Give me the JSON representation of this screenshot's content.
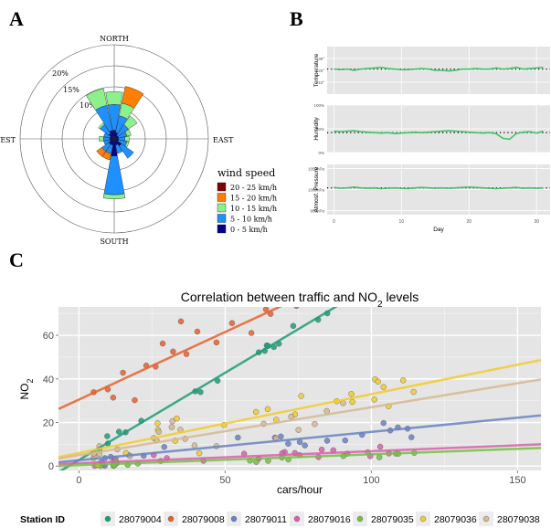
{
  "panels": {
    "a": "A",
    "b": "B",
    "c": "C"
  },
  "chart_data": [
    {
      "type": "wind-rose",
      "directions": [
        "NORTH",
        "EAST",
        "SOUTH",
        "WEST"
      ],
      "radial_ticks": [
        "10%",
        "15%",
        "20%"
      ],
      "legend_title": "wind speed",
      "speed_bins": [
        {
          "label": "20 - 25 km/h",
          "color": "#7f0000"
        },
        {
          "label": "15 - 20 km/h",
          "color": "#ff7f00"
        },
        {
          "label": "10 - 15 km/h",
          "color": "#8cf08c"
        },
        {
          "label": "5 - 10 km/h",
          "color": "#1e90ff"
        },
        {
          "label": "0 - 5 km/h",
          "color": "#00008b"
        }
      ],
      "sectors_deg": [
        0,
        22.5,
        45,
        67.5,
        90,
        112.5,
        135,
        157.5,
        180,
        202.5,
        225,
        247.5,
        270,
        292.5,
        315,
        337.5
      ],
      "values_pct": [
        [
          0.0,
          0.0,
          0.0,
          0.0,
          0.0,
          0.0,
          0.0,
          0.0,
          0.0,
          0.0,
          0.0,
          0.0,
          0.0,
          0.0,
          0.0,
          0.0
        ],
        [
          0.0,
          4.0,
          0.0,
          0.0,
          0.0,
          0.0,
          0.0,
          0.0,
          0.0,
          1.5,
          1.5,
          0.0,
          0.0,
          0.0,
          0.0,
          0.0
        ],
        [
          3.0,
          3.0,
          2.5,
          1.0,
          1.0,
          0.5,
          0.0,
          0.0,
          1.0,
          0.0,
          0.0,
          0.0,
          1.0,
          0.0,
          0.5,
          4.0
        ],
        [
          6.0,
          4.0,
          3.0,
          2.0,
          1.5,
          2.0,
          3.5,
          2.0,
          9.0,
          2.0,
          2.0,
          1.5,
          1.5,
          1.5,
          2.5,
          6.0
        ],
        [
          2.0,
          1.5,
          1.0,
          1.0,
          1.0,
          1.0,
          2.0,
          1.5,
          4.0,
          1.5,
          1.5,
          1.0,
          1.0,
          1.0,
          1.5,
          2.0
        ]
      ]
    },
    {
      "type": "line",
      "x_label": "Day",
      "x_ticks": [
        "0",
        "10",
        "20",
        "30"
      ],
      "x_range": [
        -1,
        32
      ],
      "facets": [
        {
          "name": "Temperature",
          "y_ticks": [
            "30°",
            "20°",
            "10°"
          ]
        },
        {
          "name": "Humidity",
          "y_ticks": [
            "100%",
            "50%",
            "0%"
          ]
        },
        {
          "name": "Atmosf. Pressure",
          "y_ticks": [
            "1050hPa",
            "1000hPa",
            "950hPa"
          ]
        }
      ]
    },
    {
      "type": "scatter",
      "title_main": "Correlation between traffic and NO",
      "title_sub": "2",
      "title_tail": " levels",
      "xlabel": "cars/hour",
      "ylabel_main": "NO",
      "ylabel_sub": "2",
      "x_ticks": [
        0,
        50,
        100,
        150
      ],
      "y_ticks": [
        0,
        20,
        40,
        60
      ],
      "xlim": [
        -7,
        158
      ],
      "ylim": [
        -2,
        73
      ],
      "legend_title": "Station ID",
      "series": [
        {
          "name": "28079004",
          "color": "#1b9e77",
          "line": [
            0.8,
            2.8
          ]
        },
        {
          "name": "28079008",
          "color": "#e7602c",
          "line": [
            0.62,
            30.5
          ]
        },
        {
          "name": "28079011",
          "color": "#6a83c2",
          "line": [
            0.13,
            2.7
          ]
        },
        {
          "name": "28079016",
          "color": "#d95fae",
          "line": [
            0.055,
            1.3
          ]
        },
        {
          "name": "28079035",
          "color": "#76c043",
          "line": [
            0.05,
            0.4
          ]
        },
        {
          "name": "28079036",
          "color": "#f2cd2b",
          "line": [
            0.27,
            6.0
          ]
        },
        {
          "name": "28079038",
          "color": "#d6b891",
          "line": [
            0.22,
            5.0
          ]
        }
      ]
    }
  ]
}
